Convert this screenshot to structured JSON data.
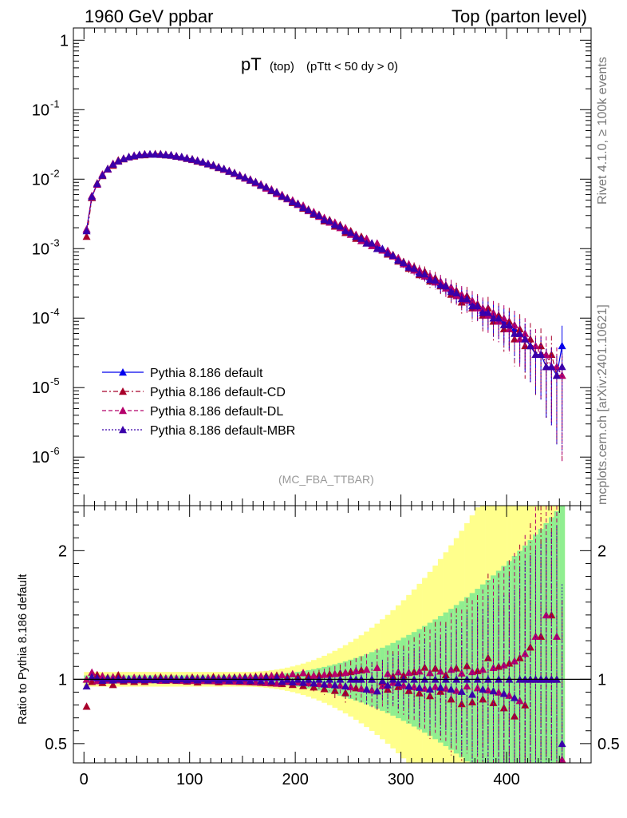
{
  "header": {
    "left": "1960 GeV ppbar",
    "right": "Top (parton level)"
  },
  "side_labels": {
    "rivet": "Rivet 4.1.0, ≥ 100k events",
    "mcplots": "mcplots.cern.ch [arXiv:2401.10621]"
  },
  "chart_data": [
    {
      "type": "scatter",
      "panel": "main",
      "title_main": "pT",
      "title_sub": "(top)",
      "title_cut": "(pTtt < 50 dy > 0)",
      "watermark": "(MC_FBA_TTBAR)",
      "yscale": "log",
      "ylim": [
        2e-07,
        1.5
      ],
      "xlim": [
        -10,
        480
      ],
      "y_ticks": [
        {
          "v": 1,
          "label": "1"
        },
        {
          "v": 0.1,
          "label": "10^-1"
        },
        {
          "v": 0.01,
          "label": "10^-2"
        },
        {
          "v": 0.001,
          "label": "10^-3"
        },
        {
          "v": 0.0001,
          "label": "10^-4"
        },
        {
          "v": 1e-05,
          "label": "10^-5"
        },
        {
          "v": 1e-06,
          "label": "10^-6"
        }
      ],
      "legend": [
        {
          "name": "Pythia 8.186 default",
          "color": "#0000ee",
          "style": "solid"
        },
        {
          "name": "Pythia 8.186 default-CD",
          "color": "#a8002a",
          "style": "dashdot"
        },
        {
          "name": "Pythia 8.186 default-DL",
          "color": "#b5006b",
          "style": "dashed"
        },
        {
          "name": "Pythia 8.186 default-MBR",
          "color": "#3a00aa",
          "style": "dotted"
        }
      ],
      "x": [
        2.5,
        7.5,
        12.5,
        17.5,
        22.5,
        27.5,
        32.5,
        37.5,
        42.5,
        47.5,
        52.5,
        57.5,
        62.5,
        67.5,
        72.5,
        77.5,
        82.5,
        87.5,
        92.5,
        97.5,
        102.5,
        107.5,
        112.5,
        117.5,
        122.5,
        127.5,
        132.5,
        137.5,
        142.5,
        147.5,
        152.5,
        157.5,
        162.5,
        167.5,
        172.5,
        177.5,
        182.5,
        187.5,
        192.5,
        197.5,
        202.5,
        207.5,
        212.5,
        217.5,
        222.5,
        227.5,
        232.5,
        237.5,
        242.5,
        247.5,
        252.5,
        257.5,
        262.5,
        267.5,
        272.5,
        277.5,
        282.5,
        287.5,
        292.5,
        297.5,
        302.5,
        307.5,
        312.5,
        317.5,
        322.5,
        327.5,
        332.5,
        337.5,
        342.5,
        347.5,
        352.5,
        357.5,
        362.5,
        367.5,
        372.5,
        377.5,
        382.5,
        387.5,
        392.5,
        397.5,
        402.5,
        407.5,
        412.5,
        417.5,
        422.5,
        427.5,
        432.5,
        437.5,
        442.5,
        447.5,
        452.5
      ],
      "series": [
        {
          "name": "Pythia 8.186 default",
          "values": [
            0.0019,
            0.0055,
            0.0085,
            0.0115,
            0.014,
            0.0165,
            0.0182,
            0.0198,
            0.0209,
            0.0218,
            0.0224,
            0.0228,
            0.0229,
            0.0229,
            0.0228,
            0.0225,
            0.0221,
            0.0215,
            0.0209,
            0.0201,
            0.0193,
            0.0185,
            0.0176,
            0.0167,
            0.0158,
            0.0149,
            0.014,
            0.0131,
            0.0122,
            0.0113,
            0.0105,
            0.0098,
            0.009,
            0.0083,
            0.0076,
            0.007,
            0.0064,
            0.0058,
            0.0053,
            0.0048,
            0.0044,
            0.004,
            0.0036,
            0.0033,
            0.003,
            0.0027,
            0.0025,
            0.0023,
            0.0021,
            0.0019,
            0.0017,
            0.0015,
            0.0014,
            0.0013,
            0.0012,
            0.0011,
            0.001,
            0.0009,
            0.0008,
            0.0007,
            0.00063,
            0.00057,
            0.00052,
            0.00047,
            0.00043,
            0.00039,
            0.00035,
            0.00032,
            0.00029,
            0.00026,
            0.00023,
            0.00021,
            0.00019,
            0.00017,
            0.00015,
            0.00013,
            0.00012,
            0.00011,
            0.0001,
            9e-05,
            8e-05,
            7e-05,
            6e-05,
            5e-05,
            4e-05,
            3e-05,
            3e-05,
            2e-05,
            2e-05,
            1.5e-05,
            4e-05
          ]
        },
        {
          "name": "Pythia 8.186 default-CD",
          "values": [
            0.0015,
            0.0054,
            0.0088,
            0.0112,
            0.0142,
            0.0158,
            0.0188,
            0.0195,
            0.021,
            0.0214,
            0.0226,
            0.0224,
            0.023,
            0.0232,
            0.0232,
            0.0223,
            0.0224,
            0.0213,
            0.021,
            0.0198,
            0.0196,
            0.0181,
            0.0178,
            0.0165,
            0.0161,
            0.0146,
            0.0142,
            0.0129,
            0.0124,
            0.0111,
            0.0107,
            0.0096,
            0.0092,
            0.0081,
            0.0078,
            0.0068,
            0.0066,
            0.0056,
            0.0054,
            0.0046,
            0.0045,
            0.0038,
            0.0037,
            0.0031,
            0.0031,
            0.0025,
            0.0026,
            0.0021,
            0.0022,
            0.0017,
            0.0018,
            0.0014,
            0.0015,
            0.0012,
            0.0012,
            0.001,
            0.00098,
            0.00083,
            0.00082,
            0.00066,
            0.00065,
            0.00052,
            0.00055,
            0.00042,
            0.00047,
            0.00034,
            0.00038,
            0.00029,
            0.0003,
            0.00022,
            0.00025,
            0.00017,
            0.00021,
            0.00014,
            0.00016,
            0.00011,
            0.00014,
            9e-05,
            0.00011,
            7e-05,
            9e-05,
            5e-05,
            7e-05,
            4e-05,
            5e-05,
            3e-05,
            4e-05,
            2e-05,
            3e-05,
            1.5e-05,
            1.5e-05
          ]
        },
        {
          "name": "Pythia 8.186 default-DL",
          "values": [
            0.0019,
            0.0058,
            0.0084,
            0.0118,
            0.0139,
            0.0168,
            0.0181,
            0.02,
            0.0208,
            0.0221,
            0.0223,
            0.0231,
            0.0228,
            0.0231,
            0.0226,
            0.0227,
            0.022,
            0.0217,
            0.0207,
            0.0203,
            0.0191,
            0.0187,
            0.0174,
            0.0169,
            0.0156,
            0.0151,
            0.0138,
            0.0133,
            0.012,
            0.0115,
            0.0103,
            0.01,
            0.0088,
            0.0085,
            0.0074,
            0.0072,
            0.0062,
            0.006,
            0.0052,
            0.005,
            0.0043,
            0.0042,
            0.0035,
            0.0034,
            0.0029,
            0.0028,
            0.0024,
            0.0024,
            0.002,
            0.002,
            0.0016,
            0.0016,
            0.0013,
            0.0014,
            0.0011,
            0.0012,
            0.00095,
            0.00094,
            0.00078,
            0.00074,
            0.0006,
            0.0006,
            0.00049,
            0.0005,
            0.0004,
            0.00041,
            0.00033,
            0.00034,
            0.00027,
            0.00028,
            0.00021,
            0.00022,
            0.00018,
            0.00018,
            0.00014,
            0.00014,
            0.00011,
            0.00012,
            9e-05,
            0.0001,
            7e-05,
            8e-05,
            5e-05,
            6e-05,
            4e-05,
            4e-05,
            3e-05,
            3e-05,
            2e-05,
            2e-05,
            1.5e-05
          ]
        },
        {
          "name": "Pythia 8.186 default-MBR",
          "values": [
            0.0018,
            0.0056,
            0.0086,
            0.0114,
            0.0141,
            0.0164,
            0.0183,
            0.0197,
            0.021,
            0.0217,
            0.0225,
            0.0227,
            0.023,
            0.0228,
            0.0229,
            0.0224,
            0.0222,
            0.0214,
            0.021,
            0.02,
            0.0194,
            0.0184,
            0.0177,
            0.0166,
            0.0159,
            0.0148,
            0.0141,
            0.013,
            0.0123,
            0.0112,
            0.0106,
            0.0097,
            0.0091,
            0.0082,
            0.0077,
            0.0069,
            0.0065,
            0.0057,
            0.0053,
            0.0047,
            0.0044,
            0.0039,
            0.0036,
            0.0032,
            0.003,
            0.0026,
            0.0025,
            0.0022,
            0.0021,
            0.0018,
            0.0017,
            0.0015,
            0.0014,
            0.0012,
            0.0012,
            0.001,
            0.00099,
            0.00086,
            0.0008,
            0.00068,
            0.00063,
            0.00054,
            0.00052,
            0.00044,
            0.00043,
            0.00036,
            0.00035,
            0.0003,
            0.00029,
            0.00024,
            0.00023,
            0.00019,
            0.00019,
            0.00015,
            0.00015,
            0.00012,
            0.00012,
            0.0001,
            0.0001,
            8e-05,
            8e-05,
            6e-05,
            6e-05,
            5e-05,
            4e-05,
            3e-05,
            3e-05,
            2e-05,
            2e-05,
            1.5e-05,
            2e-05
          ]
        }
      ]
    },
    {
      "type": "scatter",
      "panel": "ratio",
      "ylabel": "Ratio to Pythia 8.186 default",
      "ylim": [
        0.35,
        2.35
      ],
      "y_ticks": [
        {
          "v": 0.5,
          "label": "0.5"
        },
        {
          "v": 1,
          "label": "1"
        },
        {
          "v": 2,
          "label": "2"
        }
      ],
      "x_ticks": [
        {
          "v": 0,
          "label": "0"
        },
        {
          "v": 100,
          "label": "100"
        },
        {
          "v": 200,
          "label": "200"
        },
        {
          "v": 300,
          "label": "300"
        },
        {
          "v": 400,
          "label": "400"
        }
      ],
      "band_colors": {
        "inner": "#90ee90",
        "outer": "#ffff8c"
      }
    }
  ]
}
